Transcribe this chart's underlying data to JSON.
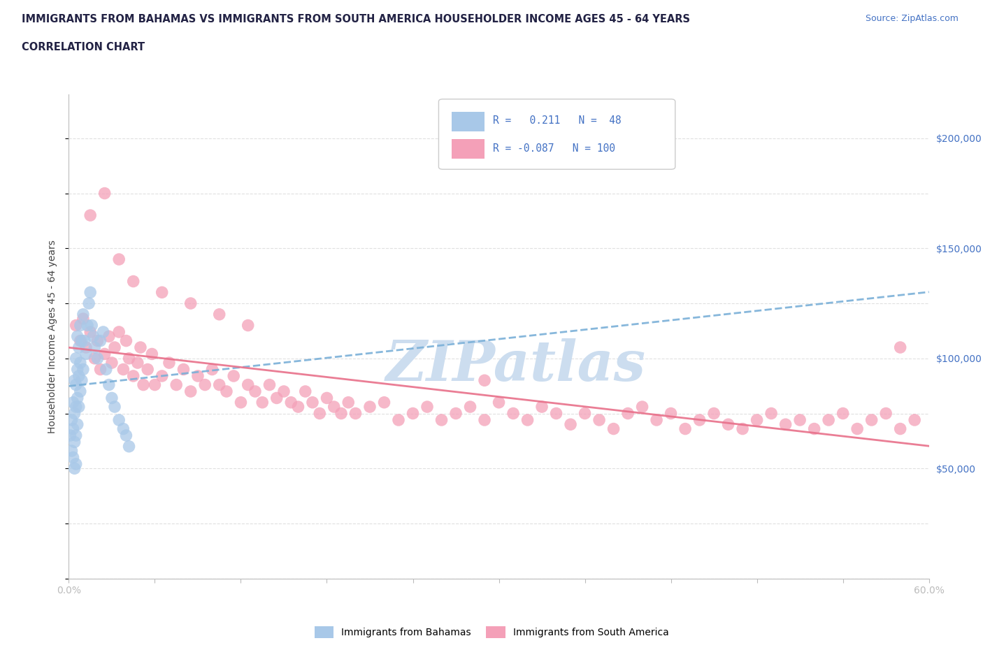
{
  "title_line1": "IMMIGRANTS FROM BAHAMAS VS IMMIGRANTS FROM SOUTH AMERICA HOUSEHOLDER INCOME AGES 45 - 64 YEARS",
  "title_line2": "CORRELATION CHART",
  "source_text": "Source: ZipAtlas.com",
  "ylabel": "Householder Income Ages 45 - 64 years",
  "x_min": 0.0,
  "x_max": 0.6,
  "y_min": 0,
  "y_max": 220000,
  "y_ticks": [
    0,
    50000,
    100000,
    150000,
    200000
  ],
  "grid_color": "#cccccc",
  "background_color": "#ffffff",
  "bahamas_color": "#a8c8e8",
  "south_america_color": "#f4a0b8",
  "bahamas_R": 0.211,
  "bahamas_N": 48,
  "south_america_R": -0.087,
  "south_america_N": 100,
  "trend_blue_color": "#7ab0d8",
  "trend_pink_color": "#e8708a",
  "watermark": "ZIPatlas",
  "watermark_color": "#ccddef",
  "legend_R_color": "#4472c4",
  "bahamas_x": [
    0.001,
    0.002,
    0.002,
    0.003,
    0.003,
    0.003,
    0.004,
    0.004,
    0.004,
    0.004,
    0.005,
    0.005,
    0.005,
    0.005,
    0.005,
    0.006,
    0.006,
    0.006,
    0.006,
    0.007,
    0.007,
    0.007,
    0.008,
    0.008,
    0.008,
    0.009,
    0.009,
    0.01,
    0.01,
    0.011,
    0.012,
    0.013,
    0.014,
    0.015,
    0.016,
    0.017,
    0.018,
    0.02,
    0.022,
    0.024,
    0.026,
    0.028,
    0.03,
    0.032,
    0.035,
    0.038,
    0.04,
    0.042
  ],
  "bahamas_y": [
    65000,
    72000,
    58000,
    80000,
    68000,
    55000,
    90000,
    75000,
    62000,
    50000,
    100000,
    88000,
    78000,
    65000,
    52000,
    110000,
    95000,
    82000,
    70000,
    105000,
    92000,
    78000,
    115000,
    98000,
    85000,
    108000,
    90000,
    120000,
    95000,
    108000,
    102000,
    115000,
    125000,
    130000,
    115000,
    110000,
    105000,
    100000,
    108000,
    112000,
    95000,
    88000,
    82000,
    78000,
    72000,
    68000,
    65000,
    60000
  ],
  "south_america_x": [
    0.005,
    0.008,
    0.01,
    0.012,
    0.015,
    0.018,
    0.02,
    0.022,
    0.025,
    0.028,
    0.03,
    0.032,
    0.035,
    0.038,
    0.04,
    0.042,
    0.045,
    0.048,
    0.05,
    0.052,
    0.055,
    0.058,
    0.06,
    0.065,
    0.07,
    0.075,
    0.08,
    0.085,
    0.09,
    0.095,
    0.1,
    0.105,
    0.11,
    0.115,
    0.12,
    0.125,
    0.13,
    0.135,
    0.14,
    0.145,
    0.15,
    0.155,
    0.16,
    0.165,
    0.17,
    0.175,
    0.18,
    0.185,
    0.19,
    0.195,
    0.2,
    0.21,
    0.22,
    0.23,
    0.24,
    0.25,
    0.26,
    0.27,
    0.28,
    0.29,
    0.3,
    0.31,
    0.32,
    0.33,
    0.34,
    0.35,
    0.36,
    0.37,
    0.38,
    0.39,
    0.4,
    0.41,
    0.42,
    0.43,
    0.44,
    0.45,
    0.46,
    0.47,
    0.48,
    0.49,
    0.5,
    0.51,
    0.52,
    0.53,
    0.54,
    0.55,
    0.56,
    0.57,
    0.58,
    0.59,
    0.015,
    0.025,
    0.035,
    0.045,
    0.065,
    0.085,
    0.105,
    0.125,
    0.29,
    0.58
  ],
  "south_america_y": [
    115000,
    108000,
    118000,
    105000,
    112000,
    100000,
    108000,
    95000,
    102000,
    110000,
    98000,
    105000,
    112000,
    95000,
    108000,
    100000,
    92000,
    98000,
    105000,
    88000,
    95000,
    102000,
    88000,
    92000,
    98000,
    88000,
    95000,
    85000,
    92000,
    88000,
    95000,
    88000,
    85000,
    92000,
    80000,
    88000,
    85000,
    80000,
    88000,
    82000,
    85000,
    80000,
    78000,
    85000,
    80000,
    75000,
    82000,
    78000,
    75000,
    80000,
    75000,
    78000,
    80000,
    72000,
    75000,
    78000,
    72000,
    75000,
    78000,
    72000,
    80000,
    75000,
    72000,
    78000,
    75000,
    70000,
    75000,
    72000,
    68000,
    75000,
    78000,
    72000,
    75000,
    68000,
    72000,
    75000,
    70000,
    68000,
    72000,
    75000,
    70000,
    72000,
    68000,
    72000,
    75000,
    68000,
    72000,
    75000,
    68000,
    72000,
    165000,
    175000,
    145000,
    135000,
    130000,
    125000,
    120000,
    115000,
    90000,
    105000
  ]
}
